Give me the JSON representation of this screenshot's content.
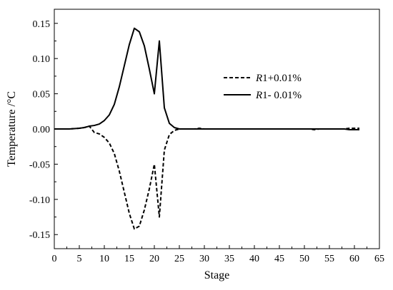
{
  "chart_data": {
    "type": "line",
    "xlabel": "Stage",
    "ylabel": "Temperature /°C",
    "xlim": [
      0,
      65
    ],
    "ylim": [
      -0.17,
      0.17
    ],
    "xticks": [
      0,
      5,
      10,
      15,
      20,
      25,
      30,
      35,
      40,
      45,
      50,
      55,
      60,
      65
    ],
    "yticks": [
      -0.15,
      -0.1,
      -0.05,
      0.0,
      0.05,
      0.1,
      0.15
    ],
    "ytick_labels": [
      "-0.15",
      "-0.10",
      "-0.05",
      "0.00",
      "0.05",
      "0.10",
      "0.15"
    ],
    "grid": false,
    "legend_position": "right",
    "x": [
      0,
      1,
      2,
      3,
      4,
      5,
      6,
      7,
      8,
      9,
      10,
      11,
      12,
      13,
      14,
      15,
      16,
      17,
      18,
      19,
      20,
      21,
      22,
      23,
      24,
      25,
      26,
      27,
      28,
      29,
      30,
      31,
      32,
      33,
      34,
      35,
      36,
      37,
      38,
      39,
      40,
      41,
      42,
      43,
      44,
      45,
      46,
      47,
      48,
      49,
      50,
      51,
      52,
      53,
      54,
      55,
      56,
      57,
      58,
      59,
      60,
      61
    ],
    "series": [
      {
        "name_italic": "R",
        "name_rest": "1+0.01%",
        "style": "dashed",
        "values": [
          0,
          0,
          0,
          0,
          0.0005,
          0.001,
          0.002,
          0.004,
          -0.005,
          -0.007,
          -0.012,
          -0.02,
          -0.035,
          -0.06,
          -0.09,
          -0.12,
          -0.142,
          -0.138,
          -0.115,
          -0.085,
          -0.05,
          -0.125,
          -0.03,
          -0.008,
          -0.002,
          0,
          0,
          0,
          0,
          0.001,
          0,
          0,
          0,
          0,
          0,
          0,
          0,
          0,
          0,
          0,
          0,
          0,
          0,
          0,
          0,
          0,
          0,
          0,
          0,
          0,
          0,
          0,
          -0.001,
          0,
          0,
          0,
          0,
          0,
          0,
          0.001,
          0.001,
          0.001
        ]
      },
      {
        "name_italic": "R",
        "name_rest": "1- 0.01%",
        "style": "solid",
        "values": [
          0,
          0,
          0,
          0,
          0.0005,
          0.001,
          0.002,
          0.004,
          0.005,
          0.007,
          0.012,
          0.02,
          0.035,
          0.06,
          0.09,
          0.12,
          0.143,
          0.138,
          0.118,
          0.085,
          0.05,
          0.125,
          0.03,
          0.008,
          0.002,
          0,
          0,
          0,
          0,
          0,
          0,
          0,
          0,
          0,
          0,
          0,
          0,
          0,
          0,
          0,
          0,
          0,
          0,
          0,
          0,
          0,
          0,
          0,
          0,
          0,
          0,
          0,
          0,
          0,
          0,
          0,
          0,
          0,
          0,
          -0.001,
          -0.001,
          -0.001
        ]
      }
    ]
  }
}
